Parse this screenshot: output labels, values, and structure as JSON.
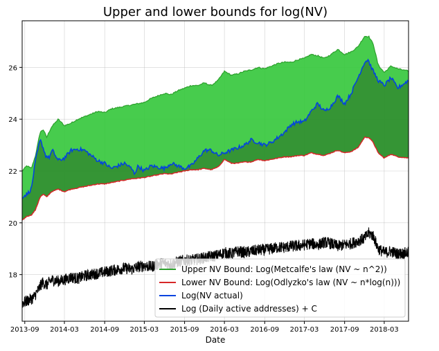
{
  "chart_data": {
    "type": "line",
    "title": "Upper and lower bounds for log(NV)",
    "xlabel": "Date",
    "ylabel": "",
    "xlim": [
      "2013-08-20",
      "2018-06-20"
    ],
    "ylim": [
      16.2,
      27.8
    ],
    "x_ticks": [
      "2013-09",
      "2014-03",
      "2014-09",
      "2015-03",
      "2015-09",
      "2016-03",
      "2016-09",
      "2017-03",
      "2017-09",
      "2018-03"
    ],
    "y_ticks": [
      18,
      20,
      22,
      24,
      26
    ],
    "grid": true,
    "legend_position": "lower-right",
    "series": [
      {
        "name": "Upper NV Bound: Log(Metcalfe's law (NV ~ n^2))",
        "color": "#2ca02c",
        "x": [
          "2013-08-20",
          "2013-09-10",
          "2013-10-01",
          "2013-10-20",
          "2013-11-10",
          "2013-11-25",
          "2013-12-10",
          "2014-01-01",
          "2014-02-01",
          "2014-03-01",
          "2014-04-01",
          "2014-05-01",
          "2014-06-01",
          "2014-07-01",
          "2014-08-01",
          "2014-09-01",
          "2014-10-01",
          "2014-11-01",
          "2014-12-01",
          "2015-01-01",
          "2015-02-01",
          "2015-03-01",
          "2015-04-01",
          "2015-05-01",
          "2015-06-01",
          "2015-07-01",
          "2015-08-01",
          "2015-09-01",
          "2015-10-01",
          "2015-11-01",
          "2015-12-01",
          "2016-01-01",
          "2016-02-01",
          "2016-03-01",
          "2016-04-01",
          "2016-05-01",
          "2016-06-01",
          "2016-07-01",
          "2016-08-01",
          "2016-09-01",
          "2016-10-01",
          "2016-11-01",
          "2016-12-01",
          "2017-01-01",
          "2017-02-01",
          "2017-03-01",
          "2017-04-01",
          "2017-05-01",
          "2017-06-01",
          "2017-07-01",
          "2017-08-01",
          "2017-09-01",
          "2017-10-01",
          "2017-11-01",
          "2017-12-01",
          "2017-12-20",
          "2018-01-10",
          "2018-02-01",
          "2018-03-01",
          "2018-04-01",
          "2018-05-01",
          "2018-06-20"
        ],
        "values": [
          22.0,
          22.2,
          22.1,
          22.6,
          23.5,
          23.6,
          23.3,
          23.7,
          24.0,
          23.75,
          23.85,
          24.0,
          24.1,
          24.2,
          24.3,
          24.25,
          24.4,
          24.45,
          24.5,
          24.55,
          24.6,
          24.65,
          24.8,
          24.9,
          25.0,
          24.95,
          25.1,
          25.2,
          25.3,
          25.3,
          25.4,
          25.3,
          25.5,
          25.85,
          25.7,
          25.75,
          25.85,
          25.9,
          26.0,
          25.95,
          26.05,
          26.15,
          26.2,
          26.2,
          26.3,
          26.35,
          26.5,
          26.45,
          26.35,
          26.5,
          26.7,
          26.5,
          26.6,
          26.8,
          27.2,
          27.2,
          26.9,
          26.1,
          25.8,
          26.05,
          25.95,
          25.85
        ]
      },
      {
        "name": "Lower NV Bound: Log(Odlyzko's law (NV ~ n*log(n)))",
        "color": "#d62728",
        "x": [
          "2013-08-20",
          "2013-09-10",
          "2013-10-01",
          "2013-10-20",
          "2013-11-10",
          "2013-11-25",
          "2013-12-10",
          "2014-01-01",
          "2014-02-01",
          "2014-03-01",
          "2014-04-01",
          "2014-05-01",
          "2014-06-01",
          "2014-07-01",
          "2014-08-01",
          "2014-09-01",
          "2014-10-01",
          "2014-11-01",
          "2014-12-01",
          "2015-01-01",
          "2015-02-01",
          "2015-03-01",
          "2015-04-01",
          "2015-05-01",
          "2015-06-01",
          "2015-07-01",
          "2015-08-01",
          "2015-09-01",
          "2015-10-01",
          "2015-11-01",
          "2015-12-01",
          "2016-01-01",
          "2016-02-01",
          "2016-03-01",
          "2016-04-01",
          "2016-05-01",
          "2016-06-01",
          "2016-07-01",
          "2016-08-01",
          "2016-09-01",
          "2016-10-01",
          "2016-11-01",
          "2016-12-01",
          "2017-01-01",
          "2017-02-01",
          "2017-03-01",
          "2017-04-01",
          "2017-05-01",
          "2017-06-01",
          "2017-07-01",
          "2017-08-01",
          "2017-09-01",
          "2017-10-01",
          "2017-11-01",
          "2017-12-01",
          "2017-12-20",
          "2018-01-10",
          "2018-02-01",
          "2018-03-01",
          "2018-04-01",
          "2018-05-01",
          "2018-06-20"
        ],
        "values": [
          20.1,
          20.25,
          20.3,
          20.5,
          21.0,
          21.1,
          21.0,
          21.2,
          21.3,
          21.2,
          21.3,
          21.35,
          21.4,
          21.45,
          21.5,
          21.5,
          21.55,
          21.6,
          21.65,
          21.7,
          21.72,
          21.75,
          21.8,
          21.85,
          21.9,
          21.88,
          21.95,
          22.0,
          22.05,
          22.05,
          22.1,
          22.05,
          22.15,
          22.45,
          22.3,
          22.3,
          22.35,
          22.35,
          22.45,
          22.4,
          22.45,
          22.5,
          22.55,
          22.55,
          22.6,
          22.6,
          22.7,
          22.65,
          22.6,
          22.7,
          22.8,
          22.7,
          22.75,
          22.9,
          23.3,
          23.3,
          23.1,
          22.7,
          22.5,
          22.65,
          22.55,
          22.5
        ]
      },
      {
        "name": "Log(NV actual)",
        "color": "#0343df",
        "x": [
          "2013-08-20",
          "2013-09-10",
          "2013-10-01",
          "2013-10-20",
          "2013-11-10",
          "2013-11-20",
          "2013-12-05",
          "2013-12-20",
          "2014-01-05",
          "2014-02-01",
          "2014-03-01",
          "2014-04-01",
          "2014-05-01",
          "2014-06-01",
          "2014-07-01",
          "2014-08-01",
          "2014-09-01",
          "2014-10-01",
          "2014-11-01",
          "2014-12-01",
          "2015-01-01",
          "2015-01-15",
          "2015-02-01",
          "2015-03-01",
          "2015-04-01",
          "2015-05-01",
          "2015-06-01",
          "2015-07-01",
          "2015-08-01",
          "2015-09-01",
          "2015-10-01",
          "2015-11-01",
          "2015-12-01",
          "2016-01-01",
          "2016-02-01",
          "2016-03-01",
          "2016-04-01",
          "2016-05-01",
          "2016-06-01",
          "2016-07-01",
          "2016-08-01",
          "2016-09-01",
          "2016-10-01",
          "2016-11-01",
          "2016-12-01",
          "2017-01-01",
          "2017-02-01",
          "2017-03-01",
          "2017-04-01",
          "2017-05-01",
          "2017-06-01",
          "2017-07-01",
          "2017-08-01",
          "2017-09-01",
          "2017-10-01",
          "2017-11-01",
          "2017-12-01",
          "2017-12-17",
          "2018-01-01",
          "2018-02-01",
          "2018-03-01",
          "2018-04-01",
          "2018-05-01",
          "2018-06-20"
        ],
        "values": [
          21.0,
          21.1,
          21.3,
          22.4,
          23.2,
          23.0,
          22.6,
          22.5,
          22.8,
          22.4,
          22.5,
          22.8,
          22.85,
          22.8,
          22.6,
          22.4,
          22.3,
          22.1,
          22.2,
          22.3,
          22.1,
          21.9,
          22.2,
          22.0,
          22.2,
          22.15,
          22.1,
          22.3,
          22.2,
          22.1,
          22.2,
          22.5,
          22.8,
          22.8,
          22.6,
          22.7,
          22.8,
          22.9,
          23.0,
          23.2,
          23.1,
          23.0,
          23.1,
          23.3,
          23.5,
          23.8,
          23.9,
          23.9,
          24.3,
          24.6,
          24.3,
          24.5,
          24.9,
          24.6,
          25.0,
          25.6,
          26.2,
          26.3,
          26.0,
          25.5,
          25.3,
          25.6,
          25.2,
          25.5
        ]
      },
      {
        "name": "Log (Daily active addresses) + C",
        "color": "#000000",
        "x": [
          "2013-08-20",
          "2013-09-15",
          "2013-10-10",
          "2013-11-01",
          "2013-11-20",
          "2013-12-10",
          "2014-01-01",
          "2014-02-01",
          "2014-03-01",
          "2014-04-01",
          "2014-05-01",
          "2014-06-01",
          "2014-07-01",
          "2014-08-01",
          "2014-09-01",
          "2014-10-01",
          "2014-11-01",
          "2014-12-01",
          "2015-01-01",
          "2015-02-01",
          "2015-03-01",
          "2015-04-01",
          "2015-05-01",
          "2015-06-01",
          "2015-07-01",
          "2015-08-01",
          "2015-09-01",
          "2015-10-01",
          "2015-11-01",
          "2015-12-01",
          "2016-01-01",
          "2016-02-01",
          "2016-03-01",
          "2016-04-01",
          "2016-05-01",
          "2016-06-01",
          "2016-07-01",
          "2016-08-01",
          "2016-09-01",
          "2016-10-01",
          "2016-11-01",
          "2016-12-01",
          "2017-01-01",
          "2017-02-01",
          "2017-03-01",
          "2017-04-01",
          "2017-05-01",
          "2017-06-01",
          "2017-07-01",
          "2017-08-01",
          "2017-09-01",
          "2017-10-01",
          "2017-11-01",
          "2017-12-01",
          "2017-12-20",
          "2018-01-10",
          "2018-02-01",
          "2018-03-01",
          "2018-04-01",
          "2018-05-01",
          "2018-06-20"
        ],
        "values": [
          16.9,
          17.0,
          17.1,
          17.4,
          17.7,
          17.6,
          17.8,
          17.75,
          17.8,
          17.9,
          17.85,
          17.95,
          18.0,
          18.05,
          18.1,
          18.15,
          18.2,
          18.25,
          18.2,
          18.3,
          18.35,
          18.3,
          18.4,
          18.45,
          18.4,
          18.5,
          18.55,
          18.55,
          18.6,
          18.65,
          18.7,
          18.75,
          18.85,
          18.8,
          18.9,
          18.85,
          18.9,
          18.95,
          18.95,
          19.0,
          19.05,
          19.05,
          19.1,
          19.1,
          19.15,
          19.2,
          19.15,
          19.25,
          19.2,
          19.1,
          19.15,
          19.2,
          19.3,
          19.4,
          19.6,
          19.5,
          19.0,
          18.85,
          18.9,
          18.8,
          18.85
        ]
      }
    ]
  }
}
